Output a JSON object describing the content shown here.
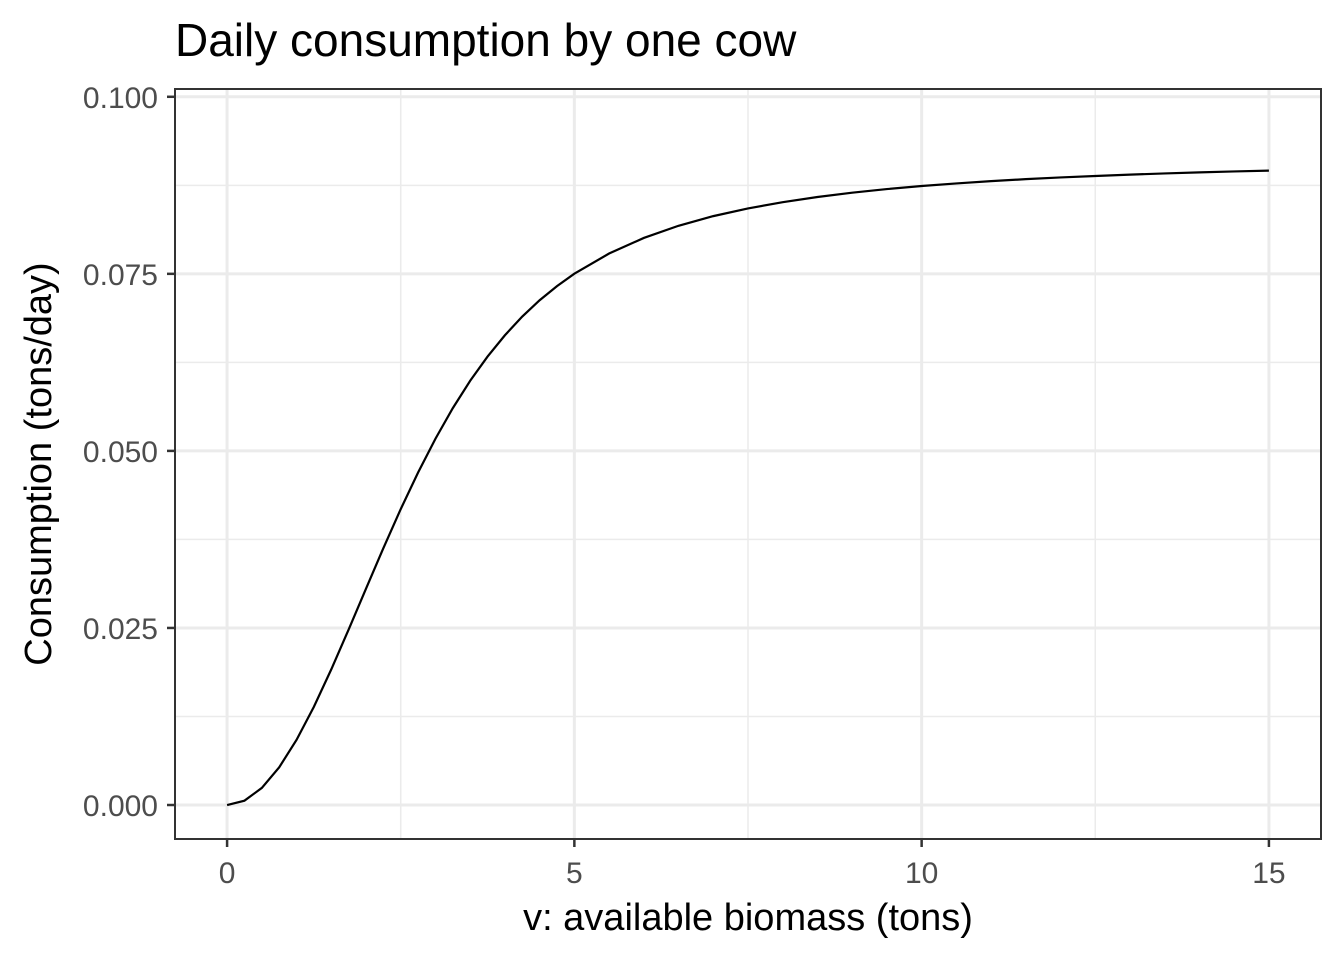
{
  "chart_data": {
    "type": "line",
    "title": "Daily consumption by one cow",
    "xlabel": "v: available biomass (tons)",
    "ylabel": "Consumption (tons/day)",
    "xlim": [
      -0.75,
      15.75
    ],
    "ylim": [
      -0.0048,
      0.1011
    ],
    "x_ticks": [
      0,
      5,
      10,
      15
    ],
    "x_tick_labels": [
      "0",
      "5",
      "10",
      "15"
    ],
    "y_ticks": [
      0,
      0.025,
      0.05,
      0.075,
      0.1
    ],
    "y_tick_labels": [
      "0.000",
      "0.025",
      "0.050",
      "0.075",
      "0.100"
    ],
    "x_minor_gridlines": [
      2.5,
      7.5,
      12.5
    ],
    "y_minor_gridlines": [
      0.0125,
      0.0375,
      0.0625,
      0.0875
    ],
    "grid": true,
    "legend": "none",
    "series": [
      {
        "color": "#000000",
        "x": [
          0,
          0.25,
          0.5,
          0.75,
          1,
          1.25,
          1.5,
          1.75,
          2,
          2.25,
          2.5,
          2.75,
          3,
          3.25,
          3.5,
          3.75,
          4,
          4.25,
          4.5,
          4.75,
          5,
          5.5,
          6,
          6.5,
          7,
          7.5,
          8,
          8.5,
          9,
          9.5,
          10,
          10.5,
          11,
          11.5,
          12,
          12.5,
          13,
          13.5,
          14,
          14.5,
          15
        ],
        "y": [
          0,
          0.00061,
          0.00241,
          0.00532,
          0.0092,
          0.01388,
          0.01915,
          0.02478,
          0.03055,
          0.03627,
          0.04178,
          0.04695,
          0.05172,
          0.05604,
          0.0599,
          0.06332,
          0.06633,
          0.06897,
          0.07127,
          0.07327,
          0.07502,
          0.07787,
          0.08007,
          0.08179,
          0.08315,
          0.08424,
          0.08512,
          0.08585,
          0.08646,
          0.08697,
          0.0874,
          0.08777,
          0.08809,
          0.08837,
          0.08861,
          0.08882,
          0.08901,
          0.08918,
          0.08933,
          0.08946,
          0.08958
        ]
      }
    ]
  }
}
